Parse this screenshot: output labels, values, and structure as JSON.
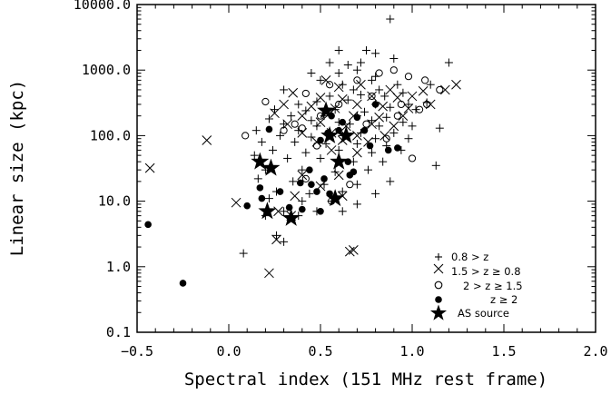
{
  "chart_data": {
    "type": "scatter",
    "title": "",
    "xlabel": "Spectral index (151 MHz rest frame)",
    "ylabel": "Linear size (kpc)",
    "xlim": [
      -0.5,
      2.0
    ],
    "ylim": [
      0.1,
      10000.0
    ],
    "yscale": "log",
    "x_ticks": [
      "−0.5",
      "0.0",
      "0.5",
      "1.0",
      "1.5",
      "2.0"
    ],
    "x_tick_values": [
      -0.5,
      0.0,
      0.5,
      1.0,
      1.5,
      2.0
    ],
    "y_ticks": [
      "0.1",
      "1.0",
      "10.0",
      "100.0",
      "1000.0",
      "10000.0"
    ],
    "y_tick_values": [
      0.1,
      1.0,
      10.0,
      100.0,
      1000.0,
      10000.0
    ],
    "legend_position": "bottom-right",
    "series": [
      {
        "name": "0.8 > z",
        "marker": "plus",
        "points": [
          [
            0.88,
            6000
          ],
          [
            0.6,
            2000
          ],
          [
            0.75,
            2000
          ],
          [
            0.8,
            1800
          ],
          [
            0.55,
            1300
          ],
          [
            0.65,
            1200
          ],
          [
            0.72,
            1300
          ],
          [
            0.9,
            1500
          ],
          [
            1.2,
            1300
          ],
          [
            0.45,
            900
          ],
          [
            0.6,
            900
          ],
          [
            0.7,
            1000
          ],
          [
            0.8,
            800
          ],
          [
            0.5,
            700
          ],
          [
            0.62,
            600
          ],
          [
            0.78,
            700
          ],
          [
            0.68,
            500
          ],
          [
            0.82,
            500
          ],
          [
            0.92,
            600
          ],
          [
            1.1,
            600
          ],
          [
            0.3,
            500
          ],
          [
            0.55,
            400
          ],
          [
            0.72,
            420
          ],
          [
            0.85,
            400
          ],
          [
            0.95,
            450
          ],
          [
            0.38,
            300
          ],
          [
            0.48,
            330
          ],
          [
            0.65,
            350
          ],
          [
            0.8,
            300
          ],
          [
            0.98,
            300
          ],
          [
            1.08,
            320
          ],
          [
            0.25,
            250
          ],
          [
            0.42,
            240
          ],
          [
            0.58,
            250
          ],
          [
            0.74,
            230
          ],
          [
            0.88,
            270
          ],
          [
            1.02,
            250
          ],
          [
            0.34,
            200
          ],
          [
            0.52,
            200
          ],
          [
            0.7,
            200
          ],
          [
            0.86,
            190
          ],
          [
            0.22,
            180
          ],
          [
            0.45,
            170
          ],
          [
            0.6,
            160
          ],
          [
            0.78,
            170
          ],
          [
            0.95,
            160
          ],
          [
            0.3,
            150
          ],
          [
            0.48,
            140
          ],
          [
            0.66,
            150
          ],
          [
            0.82,
            140
          ],
          [
            1.0,
            140
          ],
          [
            1.15,
            130
          ],
          [
            0.15,
            120
          ],
          [
            0.38,
            120
          ],
          [
            0.55,
            110
          ],
          [
            0.72,
            110
          ],
          [
            0.9,
            110
          ],
          [
            0.28,
            100
          ],
          [
            0.45,
            95
          ],
          [
            0.62,
            100
          ],
          [
            0.8,
            90
          ],
          [
            0.98,
            90
          ],
          [
            0.18,
            80
          ],
          [
            0.36,
            80
          ],
          [
            0.53,
            75
          ],
          [
            0.7,
            75
          ],
          [
            0.86,
            70
          ],
          [
            0.24,
            60
          ],
          [
            0.42,
            55
          ],
          [
            0.6,
            60
          ],
          [
            0.78,
            55
          ],
          [
            0.94,
            60
          ],
          [
            0.14,
            50
          ],
          [
            0.32,
            45
          ],
          [
            0.5,
            45
          ],
          [
            0.68,
            40
          ],
          [
            0.84,
            40
          ],
          [
            0.2,
            30
          ],
          [
            0.4,
            30
          ],
          [
            0.58,
            28
          ],
          [
            0.76,
            30
          ],
          [
            0.16,
            22
          ],
          [
            0.35,
            20
          ],
          [
            0.52,
            18
          ],
          [
            0.7,
            18
          ],
          [
            0.88,
            20
          ],
          [
            0.26,
            14
          ],
          [
            0.44,
            13
          ],
          [
            0.62,
            14
          ],
          [
            0.8,
            13
          ],
          [
            0.22,
            11
          ],
          [
            0.4,
            10
          ],
          [
            0.56,
            10
          ],
          [
            0.7,
            9
          ],
          [
            0.3,
            7
          ],
          [
            0.48,
            7
          ],
          [
            0.62,
            7
          ],
          [
            0.2,
            6
          ],
          [
            0.38,
            6
          ],
          [
            0.26,
            3
          ],
          [
            0.3,
            2.4
          ],
          [
            0.08,
            1.6
          ],
          [
            1.13,
            35
          ]
        ]
      },
      {
        "name": "1.5 > z ≥ 0.8",
        "marker": "cross",
        "points": [
          [
            -0.43,
            32
          ],
          [
            -0.12,
            85
          ],
          [
            0.04,
            9.5
          ],
          [
            0.22,
            0.8
          ],
          [
            0.26,
            2.6
          ],
          [
            0.66,
            1.7
          ],
          [
            0.68,
            1.8
          ],
          [
            1.24,
            600
          ],
          [
            0.53,
            700
          ],
          [
            0.6,
            550
          ],
          [
            0.72,
            600
          ],
          [
            0.88,
            500
          ],
          [
            1.06,
            480
          ],
          [
            1.18,
            500
          ],
          [
            0.35,
            450
          ],
          [
            0.5,
            380
          ],
          [
            0.62,
            360
          ],
          [
            0.78,
            400
          ],
          [
            0.92,
            380
          ],
          [
            1.0,
            400
          ],
          [
            0.3,
            300
          ],
          [
            0.45,
            280
          ],
          [
            0.58,
            260
          ],
          [
            0.7,
            300
          ],
          [
            0.84,
            280
          ],
          [
            0.98,
            260
          ],
          [
            1.1,
            300
          ],
          [
            0.25,
            220
          ],
          [
            0.4,
            200
          ],
          [
            0.55,
            220
          ],
          [
            0.68,
            200
          ],
          [
            0.82,
            190
          ],
          [
            0.95,
            200
          ],
          [
            0.32,
            150
          ],
          [
            0.5,
            160
          ],
          [
            0.64,
            140
          ],
          [
            0.78,
            150
          ],
          [
            0.9,
            140
          ],
          [
            0.4,
            110
          ],
          [
            0.56,
            110
          ],
          [
            0.7,
            100
          ],
          [
            0.85,
            100
          ],
          [
            0.48,
            80
          ],
          [
            0.62,
            85
          ],
          [
            0.76,
            80
          ],
          [
            0.56,
            60
          ],
          [
            0.7,
            55
          ],
          [
            0.4,
            25
          ],
          [
            0.6,
            25
          ],
          [
            0.5,
            17
          ],
          [
            0.36,
            12
          ],
          [
            0.62,
            12
          ],
          [
            0.27,
            7
          ],
          [
            0.34,
            6
          ]
        ]
      },
      {
        "name": "2 > z ≥ 1.5",
        "marker": "open-circle",
        "points": [
          [
            0.2,
            330
          ],
          [
            0.09,
            100
          ],
          [
            0.3,
            120
          ],
          [
            0.4,
            130
          ],
          [
            0.42,
            440
          ],
          [
            0.55,
            600
          ],
          [
            0.7,
            700
          ],
          [
            0.82,
            900
          ],
          [
            0.9,
            1000
          ],
          [
            0.98,
            800
          ],
          [
            1.07,
            700
          ],
          [
            1.15,
            500
          ],
          [
            0.36,
            150
          ],
          [
            0.5,
            200
          ],
          [
            0.6,
            300
          ],
          [
            0.78,
            400
          ],
          [
            0.94,
            300
          ],
          [
            1.04,
            250
          ],
          [
            0.48,
            70
          ],
          [
            0.64,
            100
          ],
          [
            0.75,
            150
          ],
          [
            0.86,
            90
          ],
          [
            0.92,
            200
          ],
          [
            1.0,
            45
          ],
          [
            0.66,
            18
          ],
          [
            0.56,
            10
          ],
          [
            0.42,
            22
          ],
          [
            1.08,
            300
          ]
        ]
      },
      {
        "name": "z ≥ 2",
        "marker": "filled-circle",
        "points": [
          [
            -0.44,
            4.4
          ],
          [
            -0.25,
            0.56
          ],
          [
            0.1,
            8.5
          ],
          [
            0.17,
            16
          ],
          [
            0.18,
            11
          ],
          [
            0.22,
            125
          ],
          [
            0.28,
            14
          ],
          [
            0.33,
            8
          ],
          [
            0.39,
            19
          ],
          [
            0.4,
            7.5
          ],
          [
            0.45,
            18
          ],
          [
            0.5,
            7
          ],
          [
            0.55,
            13
          ],
          [
            0.6,
            120
          ],
          [
            0.65,
            40
          ],
          [
            0.66,
            25
          ],
          [
            0.68,
            28
          ],
          [
            0.52,
            22
          ],
          [
            0.62,
            160
          ],
          [
            0.7,
            190
          ],
          [
            0.74,
            120
          ],
          [
            0.8,
            300
          ],
          [
            0.77,
            70
          ],
          [
            0.87,
            60
          ],
          [
            0.92,
            65
          ],
          [
            0.5,
            85
          ],
          [
            0.54,
            110
          ],
          [
            0.56,
            200
          ],
          [
            0.48,
            14
          ],
          [
            0.44,
            30
          ]
        ]
      },
      {
        "name": "AS source",
        "marker": "star",
        "points": [
          [
            0.17,
            40
          ],
          [
            0.23,
            32
          ],
          [
            0.21,
            7
          ],
          [
            0.34,
            5.5
          ],
          [
            0.58,
            11
          ],
          [
            0.6,
            40
          ],
          [
            0.53,
            240
          ],
          [
            0.55,
            100
          ],
          [
            0.64,
            100
          ]
        ]
      }
    ]
  }
}
